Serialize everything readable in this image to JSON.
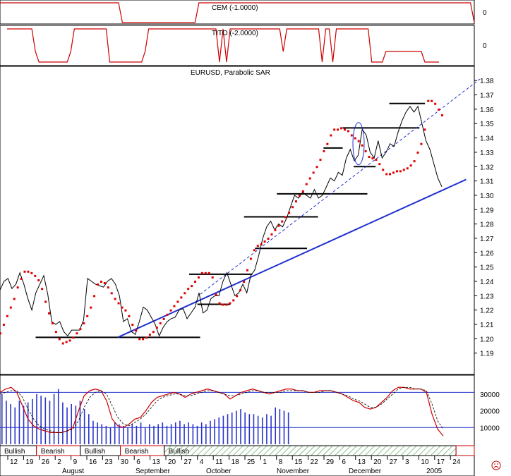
{
  "chart_data": {
    "type": "line",
    "panels": {
      "cem": {
        "label": "CEM (-1.0000)",
        "axis_value": "0",
        "color": "#cc0000",
        "values": [
          1,
          1,
          1,
          1,
          1,
          1,
          1,
          1,
          1,
          1,
          1,
          1,
          1,
          1,
          1,
          1,
          1,
          1,
          1,
          1,
          1,
          1,
          1,
          1,
          1,
          1,
          1,
          1,
          1,
          1,
          1,
          1,
          -1,
          -1,
          -1,
          -1,
          -1,
          -1,
          -1,
          -1,
          -1,
          -1,
          -1,
          -1,
          -1,
          -1,
          -1,
          -1,
          -1,
          -1,
          -1,
          -1,
          1,
          1,
          1,
          1,
          1,
          1,
          1,
          1,
          1,
          1,
          1,
          1,
          1,
          1,
          1,
          1,
          1,
          1,
          1,
          1,
          1,
          1,
          1,
          1,
          1,
          1,
          1,
          1,
          1,
          1,
          1,
          1,
          1,
          1,
          1,
          1,
          1,
          1,
          1,
          1,
          1,
          1,
          1,
          1,
          1,
          1,
          1,
          1,
          1,
          1,
          1,
          1,
          1,
          1,
          1,
          1,
          1,
          1,
          1,
          1,
          1,
          1,
          1,
          1,
          1,
          1,
          1,
          1,
          1,
          1,
          1,
          1,
          -1
        ]
      },
      "tito": {
        "label": "TITO (-2.0000)",
        "axis_value": "0",
        "color": "#cc0000",
        "values": [
          1,
          1,
          1,
          1,
          1,
          1,
          1,
          1,
          0,
          -1,
          -1,
          -1,
          -1,
          -1,
          -1,
          -1,
          -1,
          -1,
          0,
          1,
          1,
          1,
          1,
          1,
          1,
          1,
          1,
          1,
          1,
          -1,
          -1,
          -1,
          -1,
          -1,
          -1,
          -1,
          -1,
          -1,
          -1,
          0,
          1,
          1,
          1,
          1,
          1,
          1,
          1,
          1,
          1,
          1,
          1,
          1,
          1,
          1,
          1,
          1,
          1,
          1,
          1,
          1,
          -1,
          1,
          -1,
          1,
          1,
          1,
          1,
          1,
          1,
          1,
          1,
          1,
          1,
          1,
          1,
          1,
          1,
          1,
          0,
          1,
          1,
          1,
          1,
          1,
          1,
          1,
          1,
          1,
          1,
          -1,
          1,
          1,
          -1,
          1,
          1,
          1,
          1,
          1,
          1,
          1,
          1,
          1,
          1,
          -1,
          -1,
          -1,
          -1,
          0,
          0,
          0,
          0,
          0,
          0,
          0,
          0,
          0,
          0,
          0,
          -1,
          -1,
          -1,
          -1,
          -1
        ]
      },
      "price": {
        "label": "EURUSD, Parabolic SAR",
        "y_ticks": [
          "1.38",
          "1.37",
          "1.36",
          "1.35",
          "1.34",
          "1.33",
          "1.32",
          "1.31",
          "1.30",
          "1.29",
          "1.28",
          "1.27",
          "1.26",
          "1.25",
          "1.24",
          "1.23",
          "1.22",
          "1.21",
          "1.20",
          "1.19"
        ],
        "ylim": [
          1.182,
          1.386
        ],
        "close": [
          1.234,
          1.24,
          1.242,
          1.235,
          1.238,
          1.246,
          1.238,
          1.228,
          1.22,
          1.232,
          1.238,
          1.244,
          1.231,
          1.212,
          1.21,
          1.212,
          1.205,
          1.202,
          1.206,
          1.206,
          1.206,
          1.213,
          1.242,
          1.24,
          1.238,
          1.237,
          1.236,
          1.24,
          1.242,
          1.238,
          1.23,
          1.212,
          1.214,
          1.205,
          1.203,
          1.212,
          1.222,
          1.22,
          1.215,
          1.21,
          1.202,
          1.208,
          1.212,
          1.214,
          1.215,
          1.22,
          1.221,
          1.214,
          1.218,
          1.222,
          1.232,
          1.218,
          1.22,
          1.228,
          1.23,
          1.23,
          1.24,
          1.246,
          1.238,
          1.23,
          1.232,
          1.238,
          1.232,
          1.244,
          1.248,
          1.258,
          1.27,
          1.278,
          1.282,
          1.276,
          1.28,
          1.278,
          1.284,
          1.292,
          1.3,
          1.298,
          1.302,
          1.3,
          1.298,
          1.304,
          1.298,
          1.3,
          1.306,
          1.312,
          1.31,
          1.316,
          1.314,
          1.326,
          1.332,
          1.324,
          1.328,
          1.346,
          1.342,
          1.33,
          1.326,
          1.338,
          1.326,
          1.33,
          1.336,
          1.334,
          1.344,
          1.352,
          1.358,
          1.362,
          1.358,
          1.362,
          1.35,
          1.338,
          1.332,
          1.322,
          1.312,
          1.306
        ],
        "sar": [
          1.204,
          1.21,
          1.216,
          1.222,
          1.228,
          1.236,
          1.242,
          1.247,
          1.247,
          1.246,
          1.244,
          1.241,
          1.235,
          1.226,
          1.218,
          1.211,
          1.205,
          1.2,
          1.197,
          1.198,
          1.199,
          1.201,
          1.204,
          1.207,
          1.211,
          1.216,
          1.222,
          1.23,
          1.238,
          1.24,
          1.239,
          1.236,
          1.232,
          1.228,
          1.225,
          1.222,
          1.22,
          1.216,
          1.21,
          1.206,
          1.2,
          1.2,
          1.201,
          1.203,
          1.205,
          1.208,
          1.211,
          1.214,
          1.217,
          1.22,
          1.223,
          1.226,
          1.229,
          1.232,
          1.235,
          1.237,
          1.24,
          1.243,
          1.246,
          1.246,
          1.246,
          1.243,
          1.231,
          1.225,
          1.224,
          1.224,
          1.225,
          1.227,
          1.23,
          1.234,
          1.24,
          1.248,
          1.256,
          1.262,
          1.265,
          1.266,
          1.268,
          1.27,
          1.273,
          1.276,
          1.279,
          1.282,
          1.285,
          1.288,
          1.292,
          1.296,
          1.3,
          1.303,
          1.308,
          1.312,
          1.316,
          1.32,
          1.325,
          1.331,
          1.336,
          1.342,
          1.346,
          1.346,
          1.347,
          1.346,
          1.345,
          1.342,
          1.34,
          1.338,
          1.335,
          1.331,
          1.327,
          1.326,
          1.325,
          1.322,
          1.318,
          1.315,
          1.315,
          1.316,
          1.317,
          1.317,
          1.318,
          1.319,
          1.321,
          1.324,
          1.33,
          1.336,
          1.346,
          1.366,
          1.366,
          1.364,
          1.36,
          1.356
        ],
        "support_resistance": [
          {
            "y": 1.201,
            "x0": 13,
            "x1": 73
          },
          {
            "y": 1.224,
            "x0": 72,
            "x1": 84
          },
          {
            "y": 1.245,
            "x0": 69,
            "x1": 92
          },
          {
            "y": 1.263,
            "x0": 93,
            "x1": 112
          },
          {
            "y": 1.285,
            "x0": 89,
            "x1": 116
          },
          {
            "y": 1.301,
            "x0": 101,
            "x1": 134
          },
          {
            "y": 1.32,
            "x0": 129,
            "x1": 137
          },
          {
            "y": 1.333,
            "x0": 118,
            "x1": 125
          },
          {
            "y": 1.347,
            "x0": 125,
            "x1": 153
          },
          {
            "y": 1.364,
            "x0": 142,
            "x1": 155
          }
        ],
        "trend_line": {
          "x0": 43,
          "y0": 1.201,
          "x1": 170,
          "y1": 1.311
        },
        "trend_dashed": {
          "x0": 73,
          "y0": 1.231,
          "x1": 175,
          "y1": 1.381
        },
        "highlight": {
          "x": 126,
          "y": 1.336
        }
      },
      "stochastic": {
        "y_ticks": [
          "30000",
          "20000",
          "10000"
        ],
        "upper_line": 31000,
        "lower_line": 10000,
        "ylim": [
          0,
          40000
        ],
        "k": [
          31000,
          33000,
          34000,
          31000,
          23000,
          15000,
          11000,
          9000,
          8000,
          7000,
          7000,
          7000,
          8000,
          10000,
          20000,
          29000,
          32000,
          33000,
          32000,
          26000,
          15000,
          11000,
          10000,
          12000,
          15000,
          16000,
          20000,
          25000,
          28000,
          29000,
          30000,
          31000,
          30000,
          28000,
          30000,
          31000,
          32000,
          33000,
          32000,
          31000,
          30000,
          27000,
          29000,
          31000,
          32000,
          33000,
          32000,
          31000,
          30000,
          31000,
          32000,
          33000,
          33000,
          32000,
          32000,
          31000,
          31000,
          32000,
          32000,
          32000,
          31000,
          30000,
          28000,
          26000,
          25000,
          22000,
          21000,
          22000,
          25000,
          28000,
          32000,
          34000,
          34000,
          33000,
          33000,
          33000,
          31000,
          18000,
          9000,
          5000
        ],
        "d": [
          30000,
          31000,
          32000,
          32000,
          28000,
          21000,
          15000,
          11000,
          9000,
          8000,
          7000,
          7000,
          8000,
          9000,
          14000,
          22000,
          28000,
          31000,
          32000,
          30000,
          23000,
          16000,
          12000,
          11000,
          13000,
          15000,
          18000,
          22000,
          26000,
          28000,
          29000,
          30000,
          30000,
          29000,
          29000,
          30000,
          31000,
          32000,
          32000,
          31000,
          30000,
          29000,
          29000,
          30000,
          31000,
          32000,
          32000,
          31000,
          31000,
          31000,
          31000,
          32000,
          32000,
          32000,
          32000,
          31000,
          31000,
          31000,
          32000,
          32000,
          31000,
          30000,
          29000,
          27000,
          26000,
          24000,
          22000,
          22000,
          24000,
          27000,
          30000,
          33000,
          34000,
          34000,
          33000,
          33000,
          32000,
          24000,
          14000,
          9000
        ],
        "volume": [
          30000,
          26000,
          24000,
          22000,
          26000,
          23000,
          25000,
          27000,
          30000,
          29000,
          28000,
          26000,
          30000,
          33000,
          25000,
          22000,
          24000,
          23000,
          26000,
          21000,
          18000,
          14000,
          13000,
          12000,
          11000,
          10000,
          13000,
          12000,
          11000,
          10000,
          12000,
          11000,
          13000,
          10000,
          12000,
          11000,
          12000,
          13000,
          11000,
          12000,
          13000,
          14000,
          12000,
          13000,
          12000,
          11000,
          13000,
          12000,
          14000,
          15000,
          16000,
          17000,
          18000,
          19000,
          20000,
          21000,
          19000,
          18000,
          18000,
          17000,
          16000,
          18000,
          17000,
          22000,
          21000,
          20000,
          19000
        ]
      },
      "signal_bars": [
        {
          "label": "Bullish",
          "x0": 0,
          "x1": 10
        },
        {
          "label": "Bearish",
          "x0": 10,
          "x1": 22
        },
        {
          "label": "Bullish",
          "x0": 22,
          "x1": 33
        },
        {
          "label": "Bearish",
          "x0": 33,
          "x1": 45
        },
        {
          "label": "Bullish",
          "x0": 45,
          "x1": 125
        },
        {
          "label": "",
          "x0": 125,
          "x1": 130
        }
      ],
      "date_axis": {
        "days": [
          "12",
          "19",
          "26",
          "2",
          "9",
          "16",
          "23",
          "30",
          "6",
          "13",
          "20",
          "27",
          "4",
          "11",
          "18",
          "25",
          "1",
          "8",
          "15",
          "22",
          "29",
          "6",
          "13",
          "20",
          "27",
          "3",
          "10",
          "17",
          "24"
        ],
        "months": [
          "August",
          "September",
          "October",
          "November",
          "December",
          "2005"
        ]
      }
    }
  }
}
